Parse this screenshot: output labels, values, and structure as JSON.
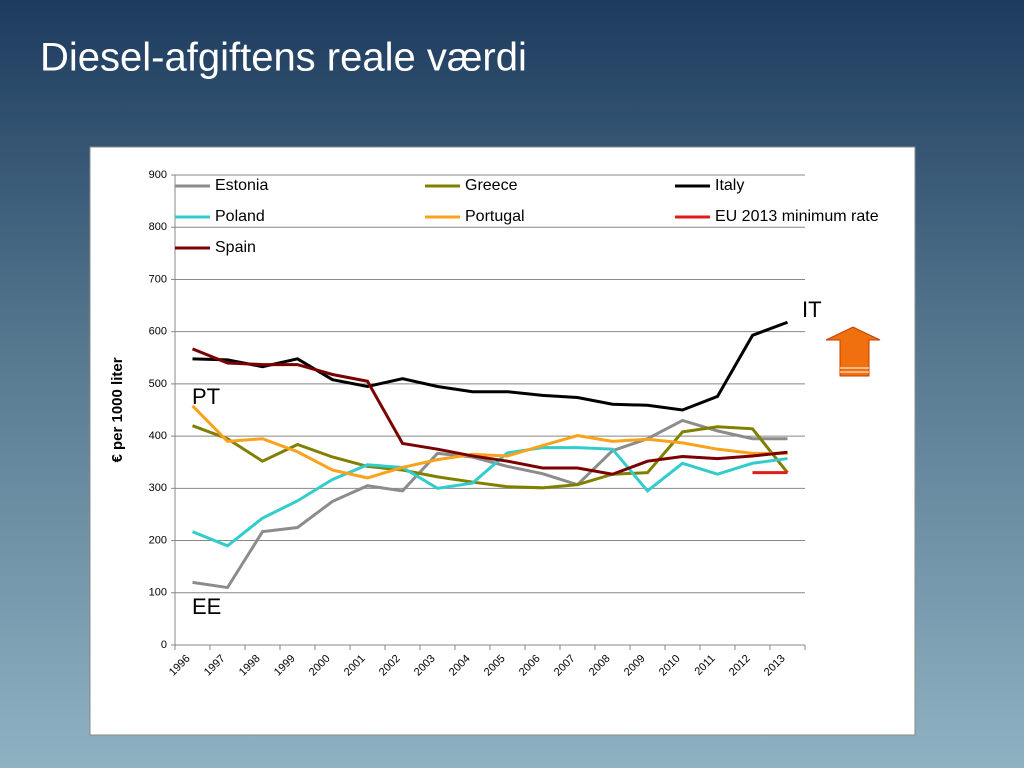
{
  "chart_data": {
    "type": "line",
    "title": "Diesel-afgiftens reale værdi",
    "y_label": "€ per 1000 liter",
    "categories": [
      "1996",
      "1997",
      "1998",
      "1999",
      "2000",
      "2001",
      "2002",
      "2003",
      "2004",
      "2005",
      "2006",
      "2007",
      "2008",
      "2009",
      "2010",
      "2011",
      "2012",
      "2013"
    ],
    "ylim": [
      0,
      900
    ],
    "yticks": [
      0,
      100,
      200,
      300,
      400,
      500,
      600,
      700,
      800,
      900
    ],
    "grid": true,
    "series": [
      {
        "name": "Estonia",
        "color": "#8c8c8c",
        "values": [
          120,
          110,
          217,
          225,
          275,
          305,
          295,
          367,
          360,
          342,
          328,
          307,
          372,
          395,
          430,
          410,
          395,
          395
        ]
      },
      {
        "name": "Greece",
        "color": "#808000",
        "values": [
          420,
          395,
          352,
          384,
          360,
          342,
          335,
          322,
          312,
          303,
          301,
          307,
          327,
          330,
          408,
          418,
          414,
          330
        ]
      },
      {
        "name": "Italy",
        "color": "#000000",
        "values": [
          548,
          546,
          533,
          548,
          508,
          495,
          510,
          495,
          485,
          485,
          478,
          474,
          461,
          459,
          450,
          476,
          593,
          618
        ]
      },
      {
        "name": "Poland",
        "color": "#33cccc",
        "values": [
          217,
          190,
          243,
          276,
          317,
          345,
          340,
          300,
          310,
          368,
          378,
          378,
          375,
          295,
          348,
          327,
          348,
          357
        ]
      },
      {
        "name": "Portugal",
        "color": "#f9a21b",
        "values": [
          458,
          390,
          395,
          370,
          335,
          320,
          340,
          355,
          365,
          362,
          382,
          401,
          390,
          394,
          387,
          375,
          367,
          367
        ]
      },
      {
        "name": "EU 2013 minimum rate",
        "color": "#e31a1c",
        "values": [
          null,
          null,
          null,
          null,
          null,
          null,
          null,
          null,
          null,
          null,
          null,
          null,
          null,
          null,
          null,
          null,
          330,
          330
        ]
      },
      {
        "name": "Spain",
        "color": "#7b0000",
        "values": [
          567,
          540,
          537,
          537,
          518,
          505,
          386,
          375,
          362,
          352,
          339,
          339,
          327,
          352,
          361,
          357,
          362,
          369
        ]
      }
    ],
    "annotations": [
      "IT",
      "PT",
      "EE"
    ]
  }
}
